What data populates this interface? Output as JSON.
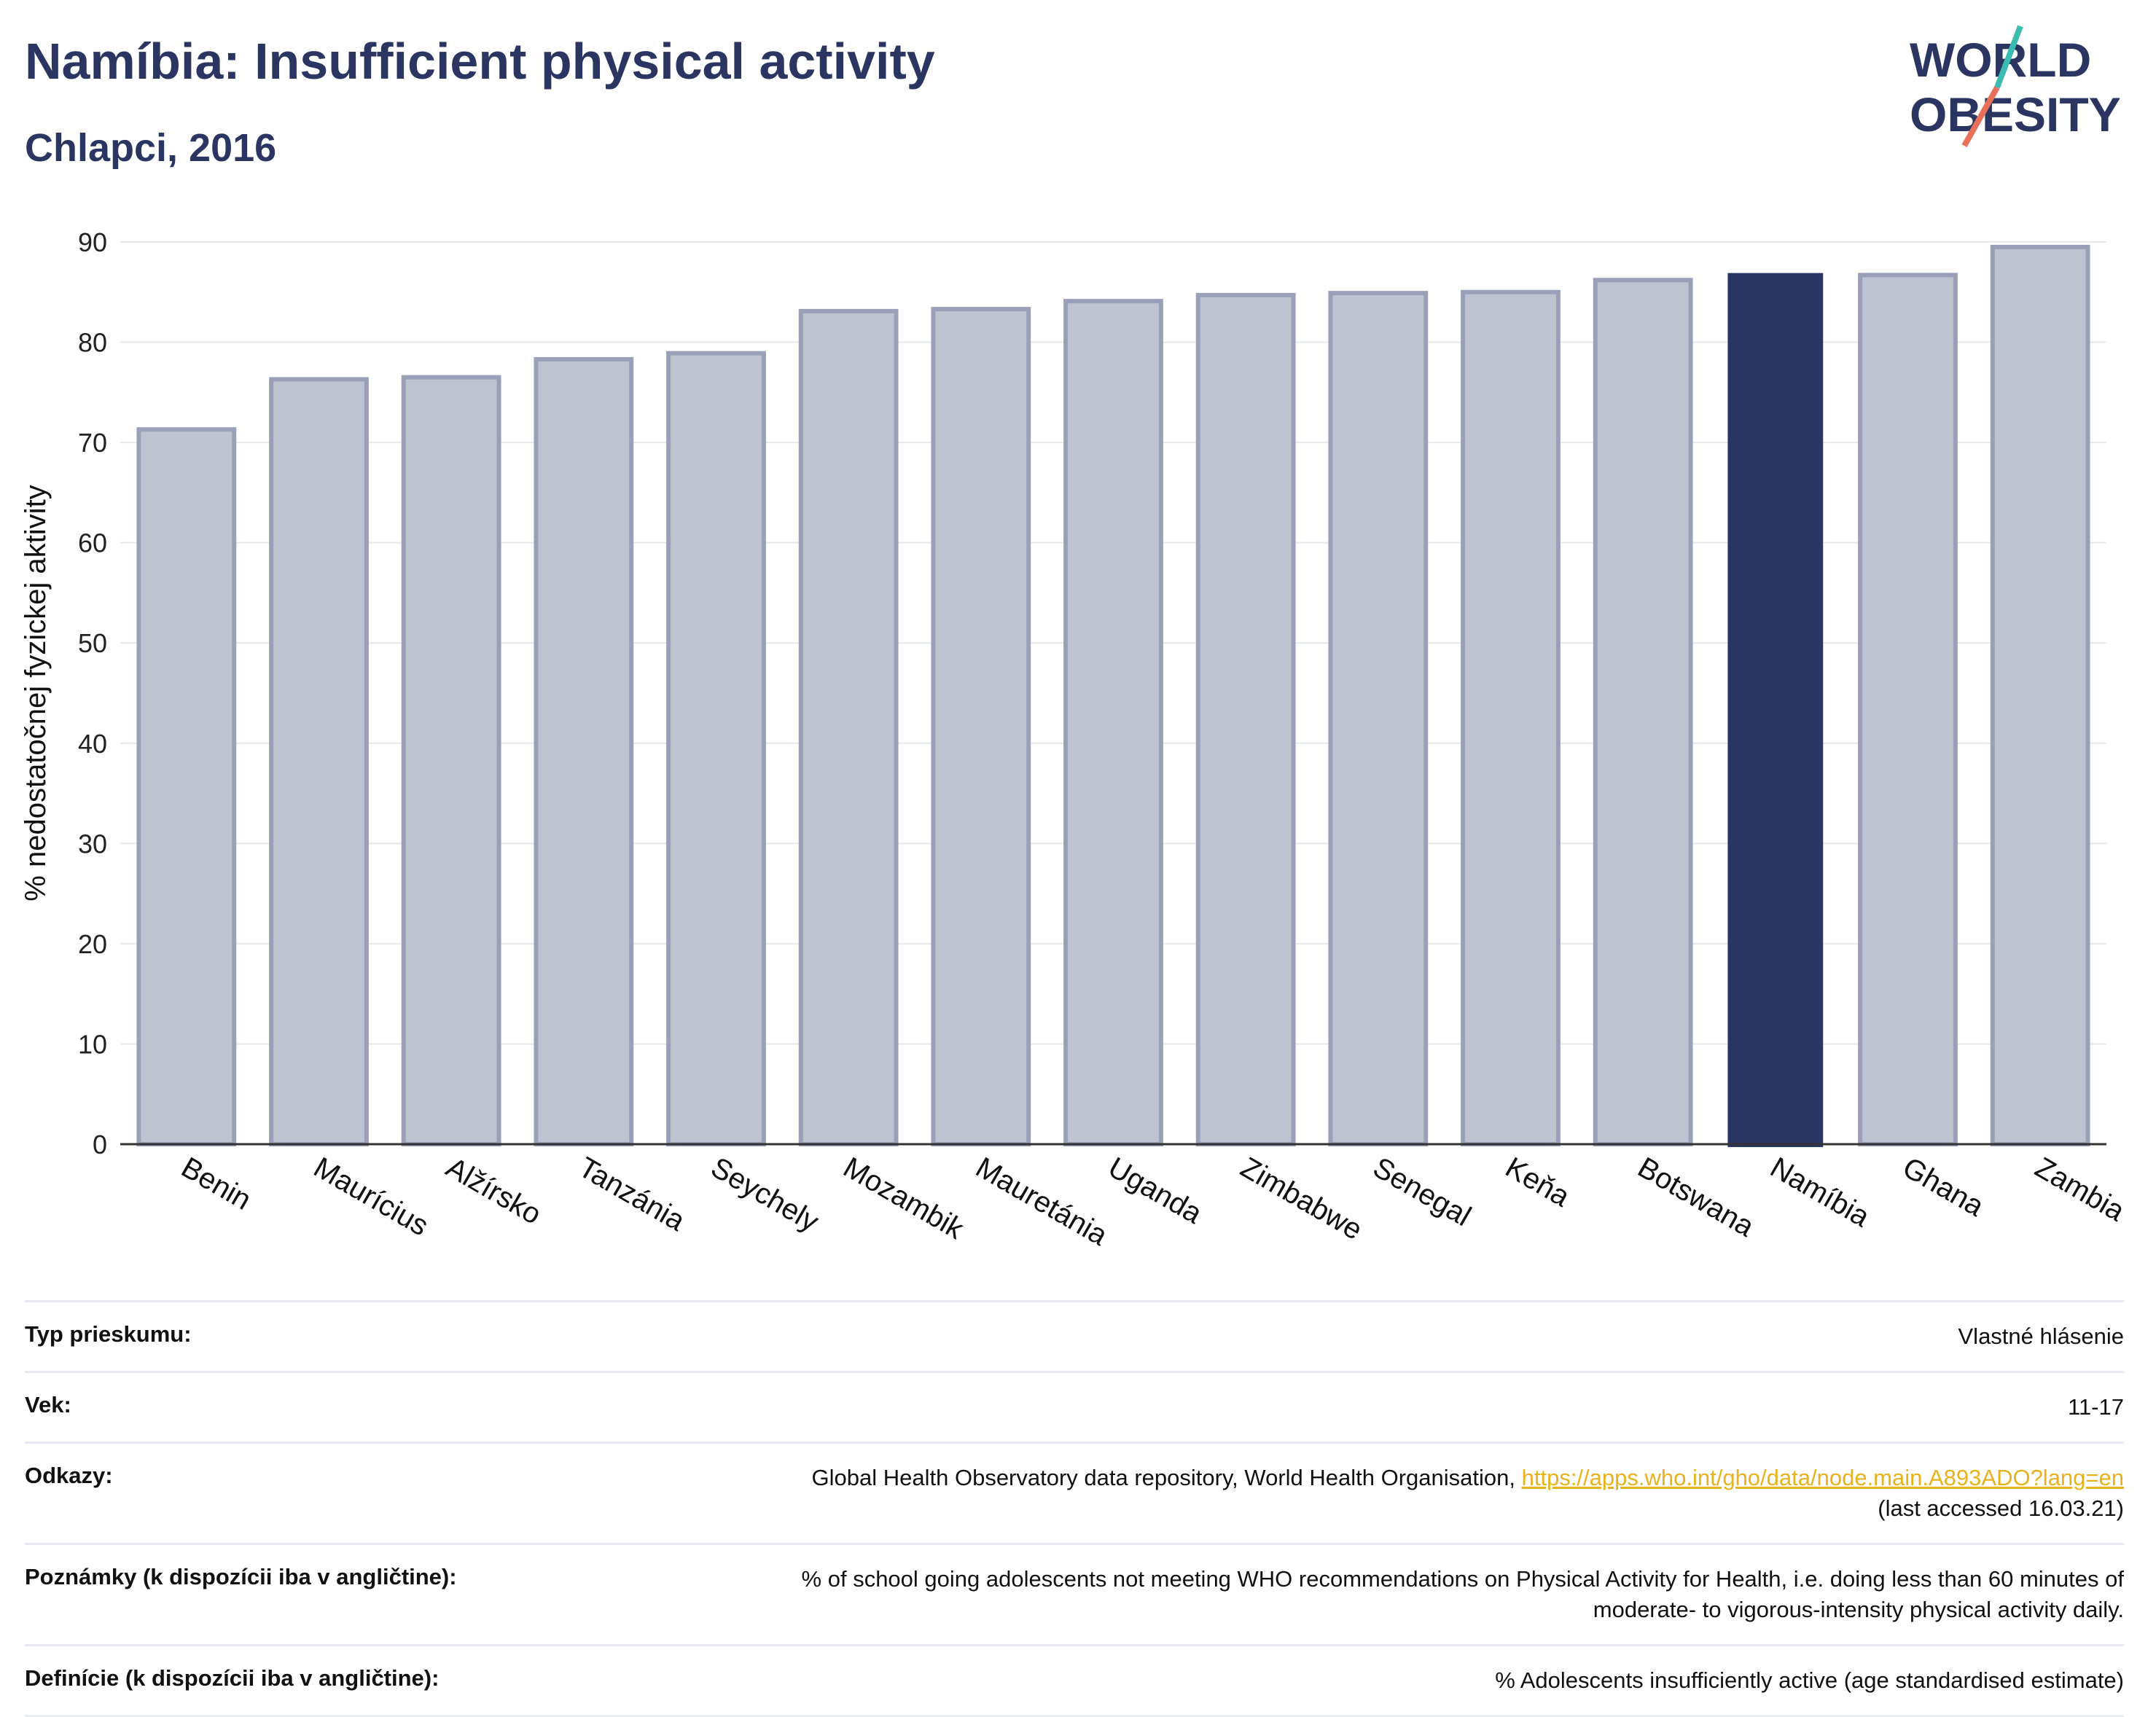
{
  "header": {
    "title": "Namíbia: Insufficient physical activity",
    "subtitle": "Chlapci, 2016"
  },
  "logo": {
    "line1": "WORLD",
    "line2": "OBESITY"
  },
  "colors": {
    "bar_default": "#bfc2cf",
    "bar_border": "#9aa0b8",
    "bar_highlight": "#2b3561",
    "title": "#2b3561",
    "link": "#e8b21c",
    "grid": "#e6e8ee"
  },
  "chart_data": {
    "type": "bar",
    "categories": [
      "Benin",
      "Maurícius",
      "Alžírsko",
      "Tanzánia",
      "Seychely",
      "Mozambik",
      "Mauretánia",
      "Uganda",
      "Zimbabwe",
      "Senegal",
      "Keňa",
      "Botswana",
      "Namíbia",
      "Ghana",
      "Zambia"
    ],
    "values": [
      71.3,
      76.3,
      76.5,
      78.3,
      78.9,
      83.1,
      83.3,
      84.1,
      84.7,
      84.9,
      85.0,
      86.2,
      86.9,
      86.7,
      89.5
    ],
    "highlight": "Namíbia",
    "ylabel": "% nedostatočnej fyzickej aktivity",
    "xlabel": "",
    "ylim": [
      0,
      90
    ],
    "yticks": [
      0,
      10,
      20,
      30,
      40,
      50,
      60,
      70,
      80,
      90
    ],
    "grid": true
  },
  "info": [
    {
      "key": "Typ prieskumu:",
      "value": "Vlastné hlásenie"
    },
    {
      "key": "Vek:",
      "value": "11-17"
    },
    {
      "key": "Odkazy:",
      "value": "Global Health Observatory data repository, World Health Organisation, ",
      "link": "https://apps.who.int/gho/data/node.main.A893ADO?lang=en",
      "value2": "(last accessed 16.03.21)"
    },
    {
      "key": "Poznámky (k dispozícii iba v angličtine):",
      "value": "% of school going adolescents not meeting WHO recommendations on Physical Activity for Health, i.e. doing less than 60 minutes of",
      "value2": "moderate- to vigorous-intensity physical activity daily."
    },
    {
      "key": "Definície (k dispozícii iba v angličtine):",
      "value": "% Adolescents insufficiently active (age standardised estimate)"
    }
  ]
}
